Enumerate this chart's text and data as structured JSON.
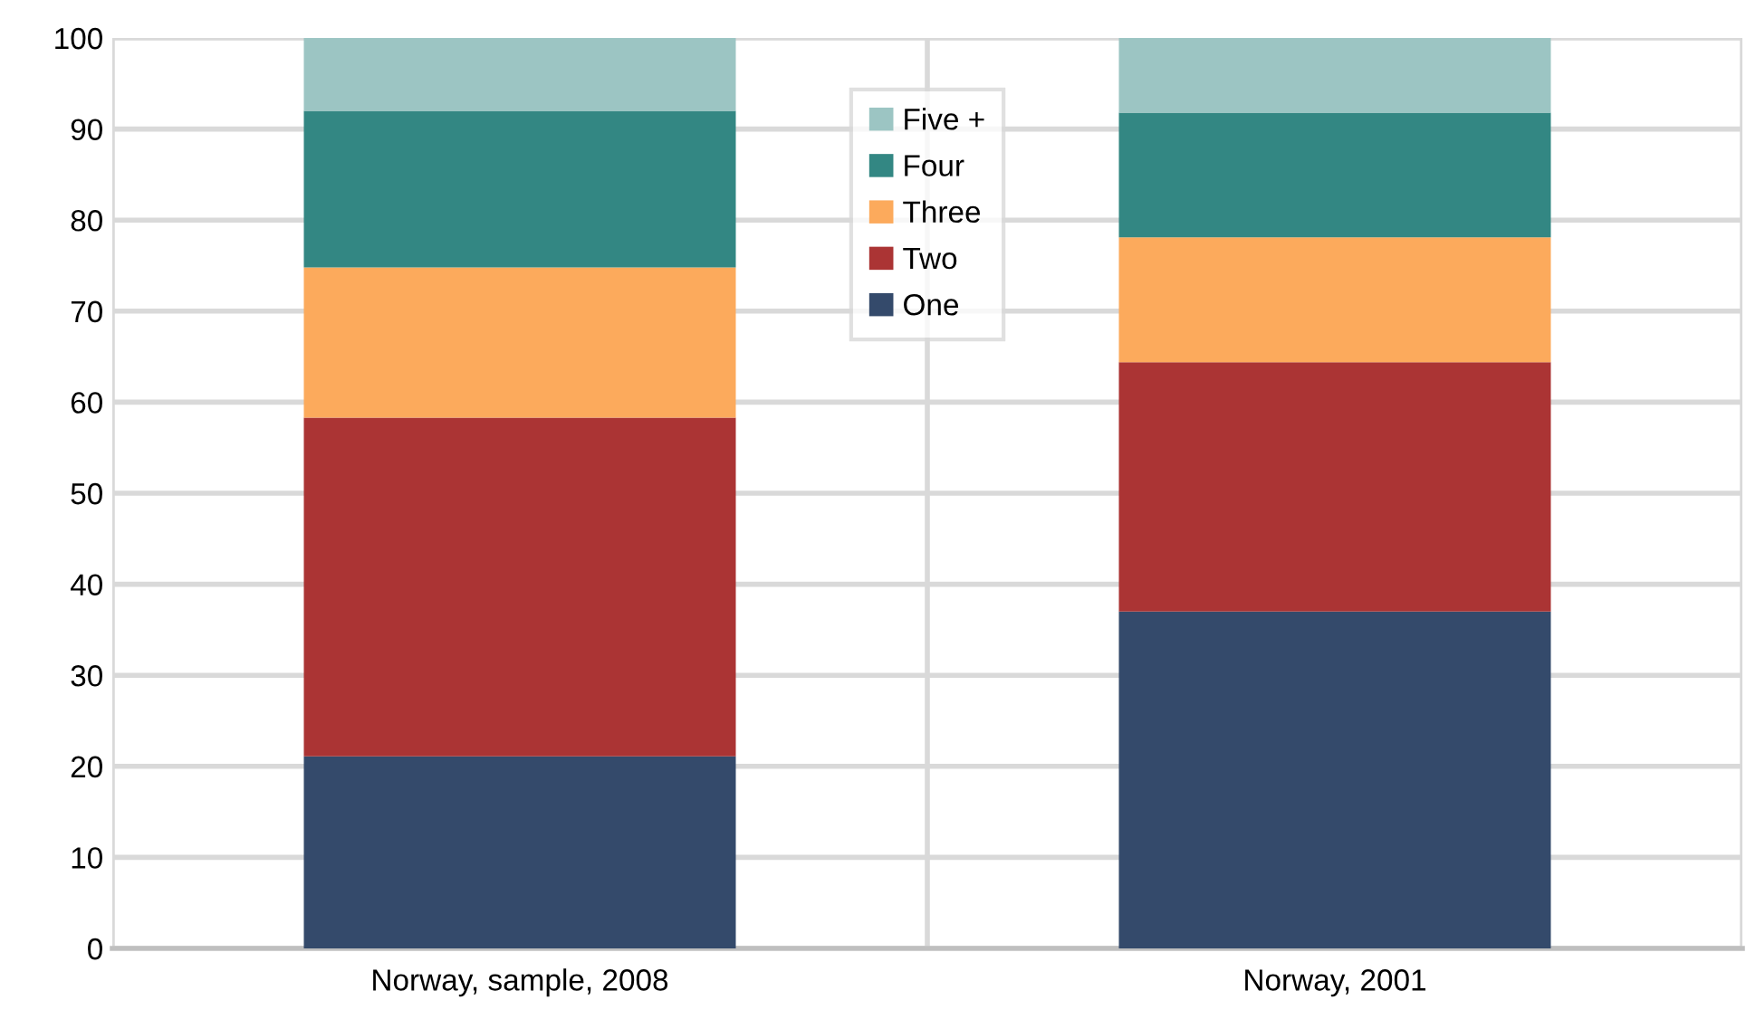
{
  "chart_data": {
    "type": "bar",
    "stacked": true,
    "categories": [
      "Norway, sample, 2008",
      "Norway, 2001"
    ],
    "series": [
      {
        "name": "One",
        "color": "#344a6b",
        "values": [
          21.1,
          37.0
        ]
      },
      {
        "name": "Two",
        "color": "#ab3434",
        "values": [
          37.2,
          27.4
        ]
      },
      {
        "name": "Three",
        "color": "#fcaa5c",
        "values": [
          16.5,
          13.7
        ]
      },
      {
        "name": "Four",
        "color": "#338783",
        "values": [
          17.2,
          13.7
        ]
      },
      {
        "name": "Five +",
        "color": "#9cc5c3",
        "values": [
          8.0,
          8.2
        ]
      }
    ],
    "ylim": [
      0,
      100
    ],
    "yticks": [
      0,
      10,
      20,
      30,
      40,
      50,
      60,
      70,
      80,
      90,
      100
    ],
    "grid": true,
    "legend": "top"
  }
}
